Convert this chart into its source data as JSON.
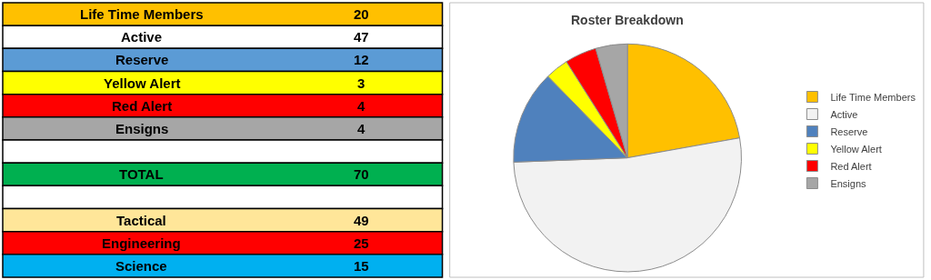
{
  "chart_data": [
    {
      "type": "other",
      "categories": [
        "Life Time Members",
        "Active",
        "Reserve",
        "Yellow Alert",
        "Red Alert",
        "Ensigns",
        null,
        "TOTAL",
        null,
        "Tactical",
        "Engineering",
        "Science"
      ],
      "values": [
        20,
        47,
        12,
        3,
        4,
        4,
        null,
        70,
        null,
        49,
        25,
        15
      ],
      "colors": [
        "#ffc000",
        "#ffffff",
        "#5b9bd5",
        "#ffff00",
        "#ff0000",
        "#a6a6a6",
        "#ffffff",
        "#00b050",
        "#ffffff",
        "#ffe699",
        "#ff0000",
        "#00b0f0"
      ],
      "data_labels": true
    },
    {
      "type": "pie",
      "title": "Roster Breakdown",
      "categories": [
        "Life Time Members",
        "Active",
        "Reserve",
        "Yellow Alert",
        "Red Alert",
        "Ensigns"
      ],
      "values": [
        22.2,
        52.2,
        13.3,
        3.3,
        4.5,
        4.5
      ],
      "colors": [
        "#ffc000",
        "#f2f2f2",
        "#4f81bd",
        "#ffff00",
        "#ff0000",
        "#a6a6a6"
      ],
      "legend": "right"
    }
  ]
}
